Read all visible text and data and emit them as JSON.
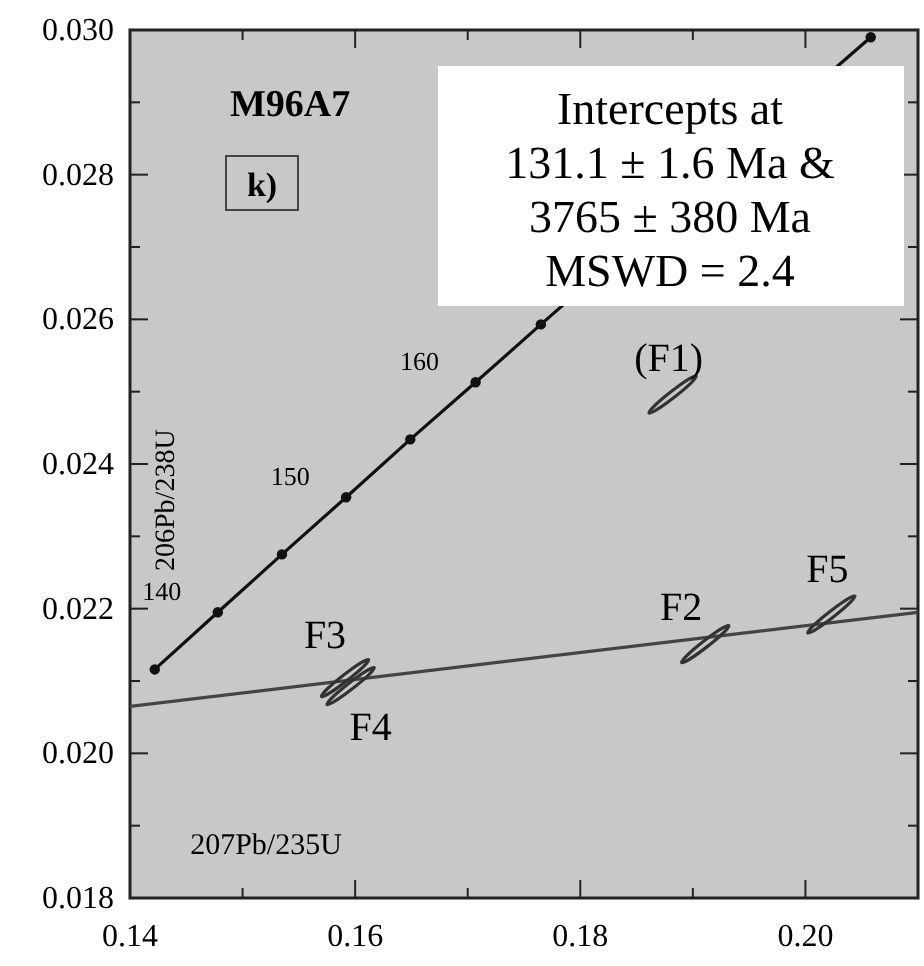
{
  "chart_data": {
    "type": "line",
    "xlabel": "207Pb/235U",
    "ylabel": "206Pb/238U",
    "xlim": [
      0.14,
      0.21
    ],
    "ylim": [
      0.018,
      0.03
    ],
    "xticks": [
      0.14,
      {
        "value": 0.15,
        "label": null
      },
      0.16,
      {
        "value": 0.17,
        "label": null
      },
      0.18,
      {
        "value": 0.19,
        "label": null
      },
      "0.20"
    ],
    "yticks": [
      0.018,
      {
        "value": 0.019,
        "label": null
      },
      "0.020",
      {
        "value": 0.021,
        "label": null
      },
      0.022,
      {
        "value": 0.023,
        "label": null
      },
      0.024,
      {
        "value": 0.025,
        "label": null
      },
      0.026,
      {
        "value": 0.027,
        "label": null
      },
      0.028,
      {
        "value": 0.029,
        "label": null
      },
      "0.030"
    ],
    "grid": false,
    "series": [
      {
        "type": "line",
        "color": "#111111",
        "marker": "circle",
        "x": [
          0.1422,
          0.1478,
          0.1535,
          0.1592,
          0.1649,
          0.1707,
          0.1765,
          0.2058
        ],
        "values": [
          0.02116,
          0.02195,
          0.02275,
          0.02354,
          0.02434,
          0.02513,
          0.02593,
          0.0299
        ]
      },
      {
        "type": "line",
        "color": "#444444",
        "marker": "none",
        "x": [
          0.14,
          0.21
        ],
        "values": [
          0.02065,
          0.02195
        ]
      },
      {
        "type": "scatter",
        "color": "#333333",
        "x": [
          0.1882,
          0.1911,
          0.1591,
          0.1596,
          0.2023
        ],
        "values": [
          0.02496,
          0.02151,
          0.02104,
          0.02093,
          0.02192
        ]
      }
    ],
    "annotations": [
      "M96A7",
      "k)",
      "Intercepts at\n131.1 ± 1.6 Ma &\n3765 ± 380 Ma\nMSWD = 2.4",
      {
        "text": "140",
        "x": 0.1478,
        "y": 0.02195
      },
      {
        "text": "150",
        "x": 0.1592,
        "y": 0.02354
      },
      {
        "text": "160",
        "x": 0.1707,
        "y": 0.02513
      },
      {
        "text": "(F1)",
        "x": 0.1882,
        "y": 0.02496
      },
      {
        "text": "F2",
        "x": 0.1911,
        "y": 0.02151
      },
      {
        "text": "F3",
        "x": 0.1591,
        "y": 0.02104
      },
      {
        "text": "F4",
        "x": 0.1596,
        "y": 0.02093
      },
      {
        "text": "F5",
        "x": 0.2023,
        "y": 0.02192
      }
    ]
  }
}
